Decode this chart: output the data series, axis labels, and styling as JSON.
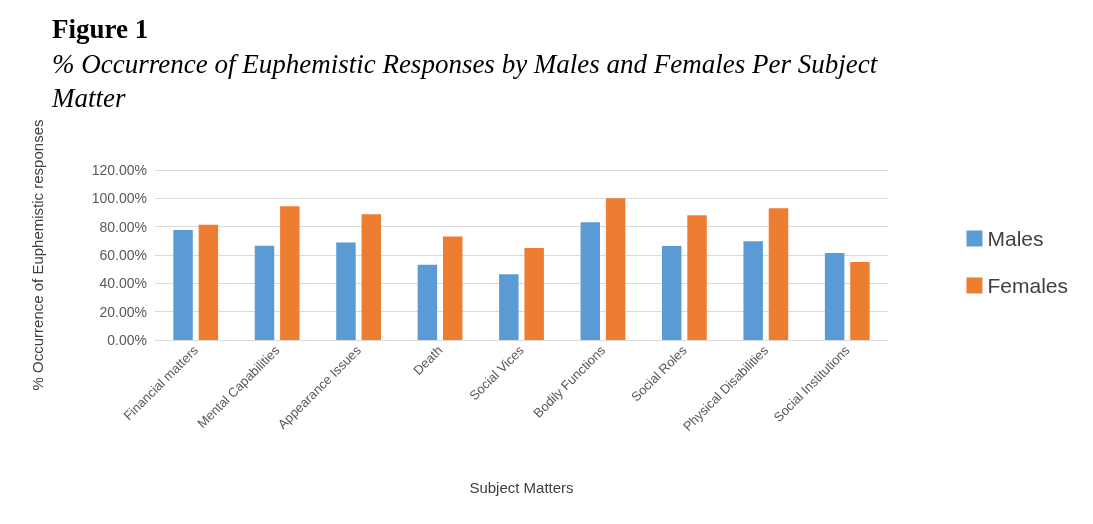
{
  "chart_data": {
    "type": "bar",
    "title": "Figure 1",
    "subtitle": "% Occurrence of Euphemistic Responses by Males and Females Per Subject Matter",
    "xlabel": "Subject Matters",
    "ylabel": "% Occurrence of Euphemistic responses",
    "categories": [
      "Financial matters",
      "Mental Capabilities",
      "Appearance Issues",
      "Death",
      "Social Vices",
      "Bodily Functions",
      "Social Roles",
      "Physical Disabilities",
      "Social Institutions"
    ],
    "series": [
      {
        "name": "Males",
        "color": "#5b9bd5",
        "values": [
          77.7,
          66.5,
          68.9,
          53.2,
          46.4,
          83.1,
          66.3,
          69.7,
          61.5
        ]
      },
      {
        "name": "Females",
        "color": "#ed7d31",
        "values": [
          81.3,
          94.4,
          88.8,
          73.1,
          65.0,
          100,
          88.1,
          93.0,
          55.0
        ]
      }
    ],
    "ylim": [
      0,
      120
    ],
    "yticks": [
      {
        "value": 0,
        "label": "0.00%"
      },
      {
        "value": 20,
        "label": "20.00%"
      },
      {
        "value": 40,
        "label": "40.00%"
      },
      {
        "value": 60,
        "label": "60.00%"
      },
      {
        "value": 80,
        "label": "80.00%"
      },
      {
        "value": 100,
        "label": "100.00%"
      },
      {
        "value": 120,
        "label": "120.00%"
      }
    ],
    "grid": "y",
    "legend": "right"
  }
}
